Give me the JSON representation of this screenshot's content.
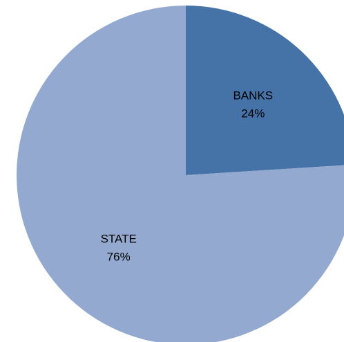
{
  "chart_data": {
    "type": "pie",
    "slices": [
      {
        "label": "BANKS",
        "value": 24,
        "value_label": "24%",
        "color": "#4572a7"
      },
      {
        "label": "STATE",
        "value": 76,
        "value_label": "76%",
        "color": "#93a9cf"
      }
    ],
    "start_angle_deg": 0,
    "direction": "clockwise",
    "legend": "none",
    "data_labels": "inside, category and percentage"
  }
}
